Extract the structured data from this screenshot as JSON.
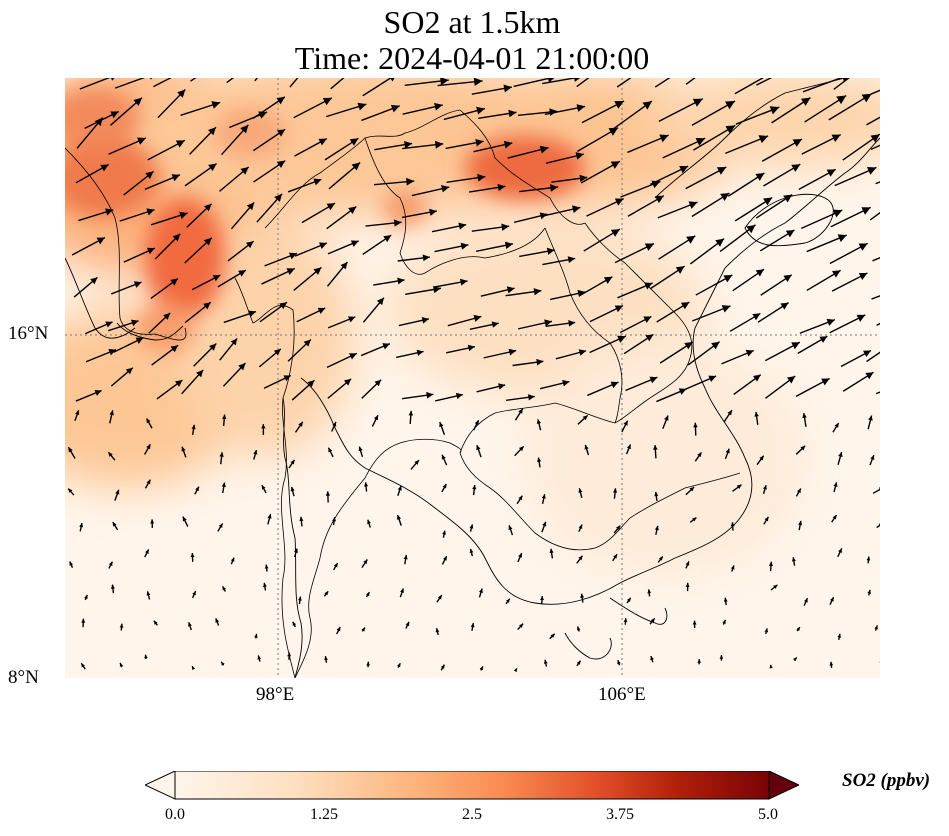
{
  "title": {
    "line1": "SO2 at 1.5km",
    "line2": "Time: 2024-04-01 21:00:00"
  },
  "axes": {
    "lat_labels": [
      "16°N",
      "8°N"
    ],
    "lon_labels": [
      "98°E",
      "106°E"
    ],
    "gridlines": "dotted"
  },
  "colorbar": {
    "label": "SO2 (ppbv)",
    "min": 0.0,
    "max": 5.0,
    "ticks": [
      "0.0",
      "1.25",
      "2.5",
      "3.75",
      "5.0"
    ],
    "extend": "both",
    "colors": [
      "#fff5eb",
      "#fdd3a7",
      "#fca66d",
      "#f16c3b",
      "#c9341f",
      "#8e0b04",
      "#67000d"
    ]
  },
  "overlay": "wind vectors (arrows)"
}
